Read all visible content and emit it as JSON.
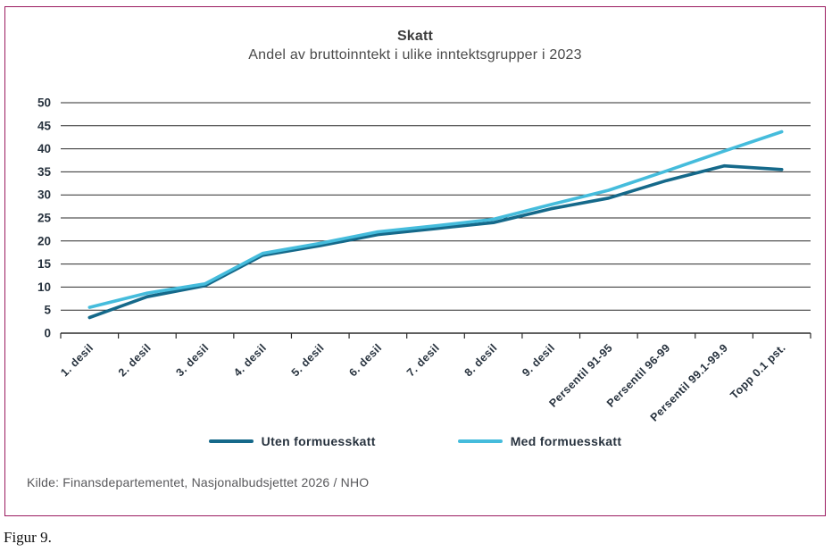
{
  "page": {
    "figure_caption": "Figur 9."
  },
  "chart_box": {
    "border_color": "#9b1b60",
    "title": "Skatt",
    "subtitle": "Andel av bruttoinntekt i ulike inntektsgrupper i 2023",
    "source": "Kilde: Finansdepartementet, Nasjonalbudsjettet 2026 / NHO"
  },
  "legend": {
    "items": [
      {
        "label": "Uten formuesskatt",
        "color": "#15698a"
      },
      {
        "label": "Med formuesskatt",
        "color": "#45bcdc"
      }
    ]
  },
  "chart_data": {
    "type": "line",
    "title": "Skatt",
    "subtitle": "Andel av bruttoinntekt i ulike inntektsgrupper i 2023",
    "categories": [
      "1. desil",
      "2. desil",
      "3. desil",
      "4. desil",
      "5. desil",
      "6. desil",
      "7. desil",
      "8. desil",
      "9. desil",
      "Persentil 91-95",
      "Persentil 96-99",
      "Persentil 99.1-99.9",
      "Topp 0.1 pst."
    ],
    "series": [
      {
        "name": "Uten formuesskatt",
        "color": "#15698a",
        "values": [
          3.4,
          7.9,
          10.3,
          16.9,
          19.0,
          21.4,
          22.7,
          24.0,
          27.0,
          29.3,
          33.1,
          36.3,
          35.5
        ]
      },
      {
        "name": "Med formuesskatt",
        "color": "#45bcdc",
        "values": [
          5.6,
          8.7,
          10.7,
          17.3,
          19.5,
          22.0,
          23.3,
          24.7,
          27.9,
          31.0,
          35.2,
          39.5,
          43.7
        ]
      }
    ],
    "xlabel": "",
    "ylabel": "",
    "ylim": [
      0,
      50
    ],
    "ytick_step": 5,
    "grid": true,
    "grid_color": "#2b2b2b",
    "axis_label_color": "#27323e",
    "legend_position": "bottom"
  }
}
